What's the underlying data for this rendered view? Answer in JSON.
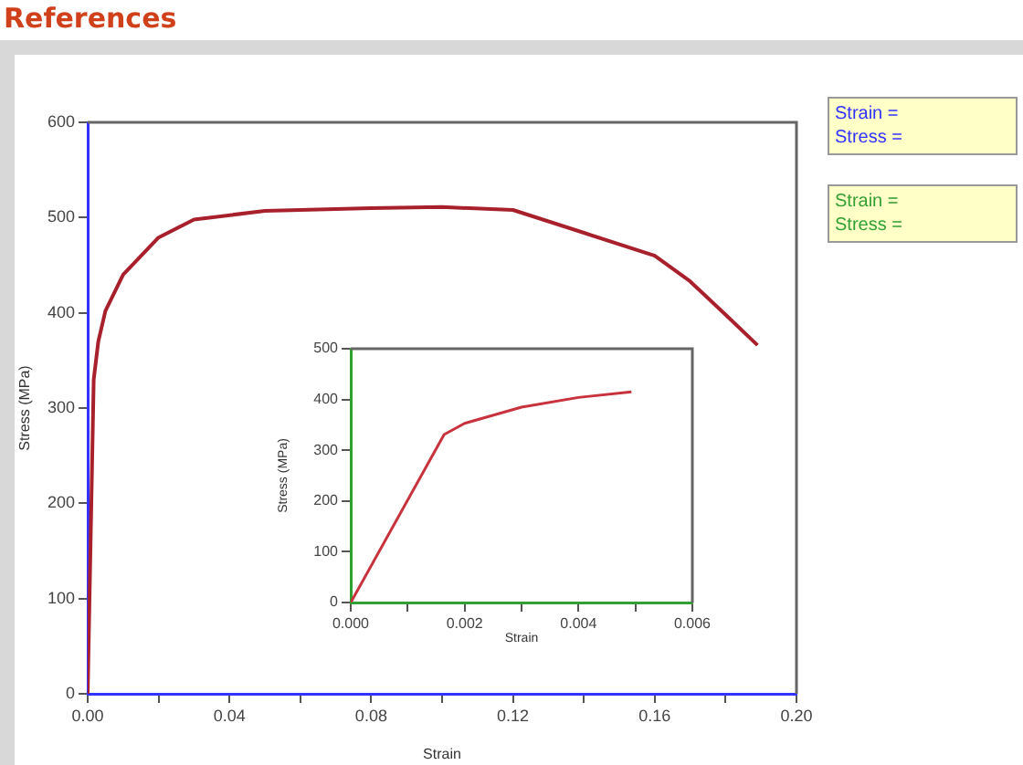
{
  "chart_data": [
    {
      "type": "line",
      "title": "References",
      "xlabel": "Strain",
      "ylabel": "Stress (MPa)",
      "x": [
        0,
        0.0017,
        0.003,
        0.005,
        0.01,
        0.02,
        0.03,
        0.05,
        0.08,
        0.1,
        0.12,
        0.14,
        0.16,
        0.17,
        0.18,
        0.189
      ],
      "series": [
        {
          "color": "#a8202c",
          "values": [
            0,
            330,
            370,
            402,
            440,
            479,
            498,
            507,
            510,
            511,
            508,
            484,
            460,
            433,
            398,
            366
          ]
        }
      ],
      "xlim": [
        0,
        0.2
      ],
      "ylim": [
        0,
        600
      ],
      "xticks": [
        {
          "value": 0,
          "label": "0.00"
        },
        {
          "value": 0.02,
          "label": null
        },
        {
          "value": 0.04,
          "label": "0.04"
        },
        {
          "value": 0.06,
          "label": null
        },
        {
          "value": 0.08,
          "label": "0.08"
        },
        {
          "value": 0.1,
          "label": null
        },
        {
          "value": 0.12,
          "label": "0.12"
        },
        {
          "value": 0.14,
          "label": null
        },
        {
          "value": 0.16,
          "label": "0.16"
        },
        {
          "value": 0.18,
          "label": null
        },
        {
          "value": 0.2,
          "label": "0.20"
        }
      ],
      "yticks": [
        0,
        100,
        200,
        300,
        400,
        500,
        600
      ],
      "grid": false,
      "legend": false,
      "marker": "none",
      "annotations": [
        "Strain =",
        "Stress ="
      ]
    },
    {
      "type": "line",
      "xlabel": "Strain",
      "ylabel": "Stress (MPa)",
      "x": [
        0,
        0.00164,
        0.002,
        0.003,
        0.004,
        0.00493
      ],
      "series": [
        {
          "color": "#c8323c",
          "values": [
            0,
            331,
            353,
            385,
            404,
            415
          ]
        }
      ],
      "xlim": [
        0,
        0.006
      ],
      "ylim": [
        0,
        500
      ],
      "xticks": [
        {
          "value": 0,
          "label": "0.000"
        },
        {
          "value": 0.001,
          "label": null
        },
        {
          "value": 0.002,
          "label": "0.002"
        },
        {
          "value": 0.003,
          "label": null
        },
        {
          "value": 0.004,
          "label": "0.004"
        },
        {
          "value": 0.005,
          "label": null
        },
        {
          "value": 0.006,
          "label": "0.006"
        }
      ],
      "yticks": [
        0,
        100,
        200,
        300,
        400,
        500
      ],
      "grid": false,
      "legend": false,
      "marker": "none",
      "annotations": [
        "Strain =",
        "Stress ="
      ]
    }
  ]
}
